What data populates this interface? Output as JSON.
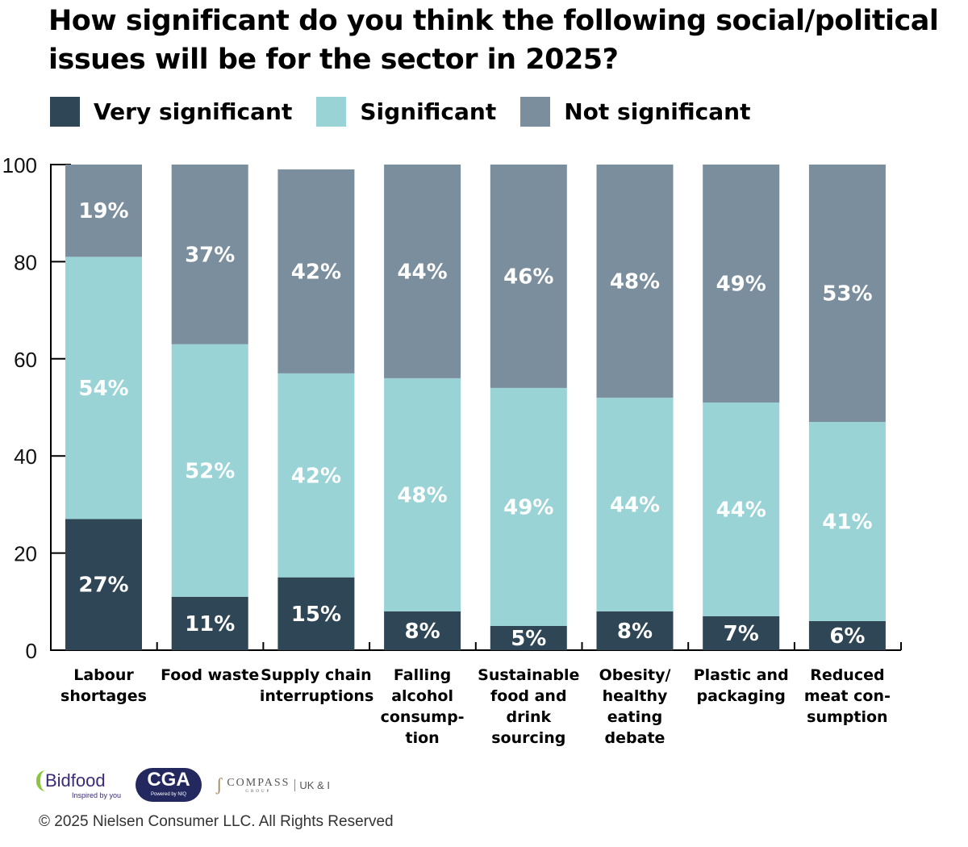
{
  "title": "How significant do you think the following social/political issues will be for the sector in 2025?",
  "colors": {
    "very": "#2f4656",
    "significant": "#99d3d5",
    "not": "#7b8e9d"
  },
  "chart_data": {
    "type": "bar",
    "stacked": true,
    "categories": [
      "Labour shortages",
      "Food waste",
      "Supply chain interruptions",
      "Falling alcohol consump-tion",
      "Sustainable food and drink sourcing",
      "Obesity/ healthy eating debate",
      "Plastic and packaging",
      "Reduced meat con-sumption"
    ],
    "series": [
      {
        "name": "Very significant",
        "values": [
          27,
          11,
          15,
          8,
          5,
          8,
          7,
          6
        ]
      },
      {
        "name": "Significant",
        "values": [
          54,
          52,
          42,
          48,
          49,
          44,
          44,
          41
        ]
      },
      {
        "name": "Not significant",
        "values": [
          19,
          37,
          42,
          44,
          46,
          48,
          49,
          53
        ]
      }
    ],
    "ylim": [
      0,
      100
    ],
    "yticks": [
      "0",
      "20",
      "40",
      "60",
      "80",
      "100"
    ],
    "legend": "top-left",
    "grid": false
  },
  "logos": {
    "bidfood": "Bidfood",
    "bidfood_tag": "Inspired by you",
    "cga": "CGA",
    "cga_tag": "Powered by NIQ",
    "compass": "COMPASS",
    "compass_sub": "GROUP",
    "compass_region": "UK & I"
  },
  "footer": "© 2025 Nielsen Consumer LLC. All Rights Reserved"
}
